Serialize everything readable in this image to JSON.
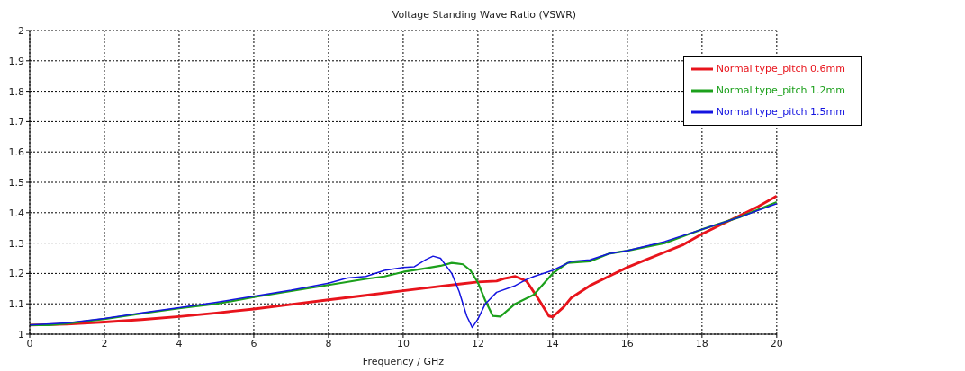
{
  "chart_data": {
    "type": "line",
    "title": "Voltage Standing Wave Ratio (VSWR)",
    "xlabel": "Frequency / GHz",
    "xlim": [
      0,
      20
    ],
    "xticks": [
      0,
      2,
      4,
      6,
      8,
      10,
      12,
      14,
      16,
      18,
      20
    ],
    "ylim": [
      1,
      2
    ],
    "yticks": [
      1,
      1.1,
      1.2,
      1.3,
      1.4,
      1.5,
      1.6,
      1.7,
      1.8,
      1.9,
      2
    ],
    "grid": true,
    "legend": "top right",
    "marker": "none",
    "line_style": "solid",
    "series": [
      {
        "name": "Normal type_pitch 0.6mm",
        "color": "#e8141c",
        "x": [
          0,
          1,
          2,
          3,
          4,
          5,
          6,
          7,
          8,
          9,
          10,
          11,
          11.5,
          12,
          12.5,
          12.7,
          13,
          13.3,
          13.6,
          13.9,
          14,
          14.3,
          14.5,
          15,
          15.5,
          16,
          16.5,
          17,
          17.5,
          18,
          18.5,
          19,
          19.5,
          20
        ],
        "values": [
          1.03,
          1.033,
          1.04,
          1.048,
          1.058,
          1.07,
          1.083,
          1.098,
          1.113,
          1.128,
          1.143,
          1.158,
          1.165,
          1.172,
          1.175,
          1.183,
          1.19,
          1.175,
          1.12,
          1.06,
          1.057,
          1.09,
          1.12,
          1.16,
          1.19,
          1.22,
          1.245,
          1.27,
          1.295,
          1.33,
          1.36,
          1.39,
          1.42,
          1.455
        ]
      },
      {
        "name": "Normal type_pitch 1.2mm",
        "color": "#1ca01c",
        "x": [
          0,
          0.5,
          1,
          2,
          3,
          4,
          5,
          6,
          7,
          8,
          9,
          9.5,
          10,
          10.5,
          11,
          11.3,
          11.6,
          11.8,
          12,
          12.2,
          12.4,
          12.6,
          13,
          13.5,
          14,
          14.4,
          15,
          15.5,
          16,
          17,
          18,
          19,
          20
        ],
        "values": [
          1.03,
          1.03,
          1.035,
          1.05,
          1.068,
          1.085,
          1.1,
          1.122,
          1.142,
          1.162,
          1.182,
          1.19,
          1.205,
          1.215,
          1.225,
          1.235,
          1.23,
          1.21,
          1.17,
          1.11,
          1.06,
          1.058,
          1.1,
          1.13,
          1.2,
          1.235,
          1.24,
          1.265,
          1.275,
          1.3,
          1.345,
          1.385,
          1.435
        ]
      },
      {
        "name": "Normal type_pitch 1.5mm",
        "color": "#1414e0",
        "x": [
          0,
          1,
          2,
          3,
          4,
          5,
          6,
          7,
          8,
          8.5,
          9,
          9.5,
          10,
          10.3,
          10.6,
          10.8,
          11,
          11.3,
          11.5,
          11.7,
          11.85,
          12,
          12.2,
          12.5,
          13,
          13.3,
          13.5,
          14,
          14.5,
          15,
          15.5,
          16,
          17,
          18,
          19,
          20
        ],
        "values": [
          1.03,
          1.037,
          1.052,
          1.07,
          1.087,
          1.105,
          1.125,
          1.145,
          1.168,
          1.185,
          1.19,
          1.21,
          1.22,
          1.222,
          1.245,
          1.257,
          1.25,
          1.2,
          1.14,
          1.06,
          1.022,
          1.05,
          1.1,
          1.138,
          1.16,
          1.18,
          1.19,
          1.21,
          1.24,
          1.245,
          1.265,
          1.275,
          1.305,
          1.345,
          1.385,
          1.43
        ]
      }
    ]
  }
}
